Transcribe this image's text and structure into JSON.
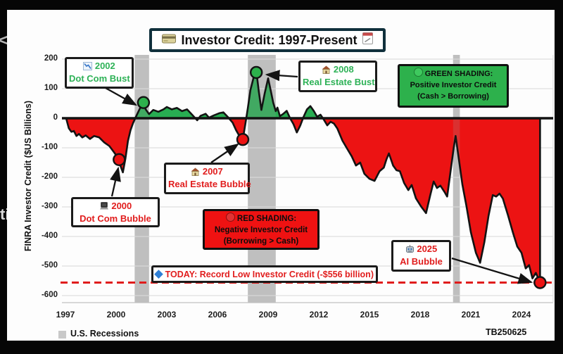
{
  "frame": {
    "artifact_text": "ti",
    "artifact_chevron": "<"
  },
  "title": {
    "text": "Investor Credit: 1997-Present",
    "icon_left": "credit-card",
    "icon_right": "calendar-memo"
  },
  "y_axis": {
    "label": "FINRA Investor Credit ($US Billions)"
  },
  "legend": {
    "recessions_label": "U.S. Recessions",
    "watermark": "TB250625"
  },
  "annotations": {
    "dotcom_bust": {
      "year": "2002",
      "label": "Dot Com Bust",
      "icon": "chart-down"
    },
    "realestate_bust": {
      "year": "2008",
      "label": "Real Estate Bust",
      "icon": "house"
    },
    "green_shading": {
      "heading": "GREEN SHADING:",
      "line2": "Positive Investor Credit",
      "line3": "(Cash > Borrowing)",
      "icon": "green-circle"
    },
    "realestate_bubble": {
      "year": "2007",
      "label": "Real Estate Bubble",
      "icon": "house"
    },
    "dotcom_bubble": {
      "year": "2000",
      "label": "Dot Com Bubble",
      "icon": "laptop"
    },
    "red_shading": {
      "heading": "RED SHADING:",
      "line2": "Negative Investor Credit",
      "line3": "(Borrowing > Cash)",
      "icon": "red-circle"
    },
    "today": {
      "label": "TODAY: Record Low Investor Credit (-$556 billion)",
      "icon": "blue-diamond"
    },
    "ai_bubble": {
      "year": "2025",
      "label": "AI Bubble",
      "icon": "robot"
    }
  },
  "chart_data": {
    "type": "area",
    "title": "Investor Credit: 1997-Present",
    "xlabel": "",
    "ylabel": "FINRA Investor Credit ($US Billions)",
    "xlim": [
      1997,
      2026
    ],
    "ylim": [
      -600,
      200
    ],
    "x_ticks": [
      1997,
      2000,
      2003,
      2006,
      2009,
      2012,
      2015,
      2018,
      2021,
      2024
    ],
    "y_ticks": [
      200,
      100,
      0,
      -100,
      -200,
      -300,
      -400,
      -500,
      -600
    ],
    "grid": "horizontal",
    "positive_color": "#28ad52",
    "negative_color": "#ec1313",
    "recession_color": "#c9c9c9",
    "recessions": [
      [
        2001.1,
        2001.95
      ],
      [
        2007.8,
        2009.45
      ],
      [
        2019.95,
        2020.35
      ]
    ],
    "today_line": {
      "value": -556,
      "color": "#e01c1c",
      "style": "dashed"
    },
    "series": [
      {
        "name": "Investor Credit ($US Billions)",
        "points": [
          [
            1997.05,
            -2
          ],
          [
            1997.2,
            -34
          ],
          [
            1997.35,
            -46
          ],
          [
            1997.5,
            -43
          ],
          [
            1997.65,
            -60
          ],
          [
            1997.8,
            -53
          ],
          [
            1998.0,
            -65
          ],
          [
            1998.2,
            -58
          ],
          [
            1998.45,
            -70
          ],
          [
            1998.7,
            -60
          ],
          [
            1999.0,
            -65
          ],
          [
            1999.3,
            -82
          ],
          [
            1999.6,
            -94
          ],
          [
            1999.85,
            -113
          ],
          [
            2000.1,
            -133
          ],
          [
            2000.25,
            -160
          ],
          [
            2000.4,
            -183
          ],
          [
            2000.55,
            -137
          ],
          [
            2000.7,
            -77
          ],
          [
            2000.85,
            -41
          ],
          [
            2001.0,
            -17
          ],
          [
            2001.2,
            8
          ],
          [
            2001.45,
            38
          ],
          [
            2001.62,
            53
          ],
          [
            2001.75,
            30
          ],
          [
            2001.95,
            14
          ],
          [
            2002.2,
            28
          ],
          [
            2002.5,
            22
          ],
          [
            2002.8,
            30
          ],
          [
            2003.0,
            38
          ],
          [
            2003.3,
            30
          ],
          [
            2003.6,
            35
          ],
          [
            2003.9,
            24
          ],
          [
            2004.2,
            30
          ],
          [
            2004.5,
            12
          ],
          [
            2004.8,
            -7
          ],
          [
            2005.0,
            8
          ],
          [
            2005.3,
            15
          ],
          [
            2005.5,
            2
          ],
          [
            2005.8,
            10
          ],
          [
            2006.1,
            17
          ],
          [
            2006.35,
            20
          ],
          [
            2006.6,
            5
          ],
          [
            2006.9,
            -15
          ],
          [
            2007.1,
            -40
          ],
          [
            2007.35,
            -65
          ],
          [
            2007.5,
            -72
          ],
          [
            2007.65,
            -20
          ],
          [
            2007.8,
            35
          ],
          [
            2007.95,
            95
          ],
          [
            2008.15,
            140
          ],
          [
            2008.3,
            160
          ],
          [
            2008.45,
            90
          ],
          [
            2008.6,
            28
          ],
          [
            2008.8,
            85
          ],
          [
            2009.0,
            135
          ],
          [
            2009.15,
            95
          ],
          [
            2009.3,
            53
          ],
          [
            2009.45,
            24
          ],
          [
            2009.55,
            36
          ],
          [
            2009.7,
            7
          ],
          [
            2009.9,
            15
          ],
          [
            2010.1,
            25
          ],
          [
            2010.3,
            0
          ],
          [
            2010.5,
            -20
          ],
          [
            2010.7,
            -48
          ],
          [
            2010.9,
            -25
          ],
          [
            2011.1,
            5
          ],
          [
            2011.3,
            30
          ],
          [
            2011.5,
            41
          ],
          [
            2011.7,
            25
          ],
          [
            2011.9,
            5
          ],
          [
            2012.1,
            12
          ],
          [
            2012.3,
            -5
          ],
          [
            2012.5,
            -24
          ],
          [
            2012.7,
            -12
          ],
          [
            2012.9,
            -18
          ],
          [
            2013.1,
            -35
          ],
          [
            2013.4,
            -76
          ],
          [
            2013.7,
            -105
          ],
          [
            2013.95,
            -129
          ],
          [
            2014.2,
            -160
          ],
          [
            2014.45,
            -150
          ],
          [
            2014.7,
            -188
          ],
          [
            2015.0,
            -205
          ],
          [
            2015.3,
            -212
          ],
          [
            2015.6,
            -179
          ],
          [
            2015.85,
            -167
          ],
          [
            2016.0,
            -140
          ],
          [
            2016.15,
            -119
          ],
          [
            2016.4,
            -160
          ],
          [
            2016.6,
            -176
          ],
          [
            2016.8,
            -179
          ],
          [
            2017.05,
            -219
          ],
          [
            2017.3,
            -243
          ],
          [
            2017.5,
            -226
          ],
          [
            2017.75,
            -271
          ],
          [
            2018.05,
            -298
          ],
          [
            2018.35,
            -321
          ],
          [
            2018.6,
            -260
          ],
          [
            2018.8,
            -214
          ],
          [
            2019.0,
            -236
          ],
          [
            2019.2,
            -228
          ],
          [
            2019.45,
            -250
          ],
          [
            2019.6,
            -265
          ],
          [
            2019.8,
            -180
          ],
          [
            2020.0,
            -95
          ],
          [
            2020.1,
            -60
          ],
          [
            2020.3,
            -142
          ],
          [
            2020.5,
            -224
          ],
          [
            2020.75,
            -300
          ],
          [
            2021.0,
            -385
          ],
          [
            2021.3,
            -455
          ],
          [
            2021.55,
            -489
          ],
          [
            2021.8,
            -420
          ],
          [
            2022.05,
            -330
          ],
          [
            2022.3,
            -260
          ],
          [
            2022.5,
            -265
          ],
          [
            2022.7,
            -255
          ],
          [
            2022.9,
            -272
          ],
          [
            2023.2,
            -328
          ],
          [
            2023.5,
            -388
          ],
          [
            2023.75,
            -434
          ],
          [
            2024.0,
            -455
          ],
          [
            2024.25,
            -508
          ],
          [
            2024.45,
            -497
          ],
          [
            2024.65,
            -542
          ],
          [
            2024.85,
            -523
          ],
          [
            2025.1,
            -556
          ]
        ]
      }
    ],
    "markers": [
      {
        "year": 2000.18,
        "value": -140,
        "color": "red",
        "event": "2000 Dot Com Bubble"
      },
      {
        "year": 2001.62,
        "value": 53,
        "color": "green",
        "event": "2002 Dot Com Bust"
      },
      {
        "year": 2007.5,
        "value": -72,
        "color": "red",
        "event": "2007 Real Estate Bubble"
      },
      {
        "year": 2008.3,
        "value": 155,
        "color": "green",
        "event": "2008 Real Estate Bust"
      },
      {
        "year": 2025.1,
        "value": -556,
        "color": "red",
        "event": "2025 AI Bubble"
      }
    ]
  }
}
